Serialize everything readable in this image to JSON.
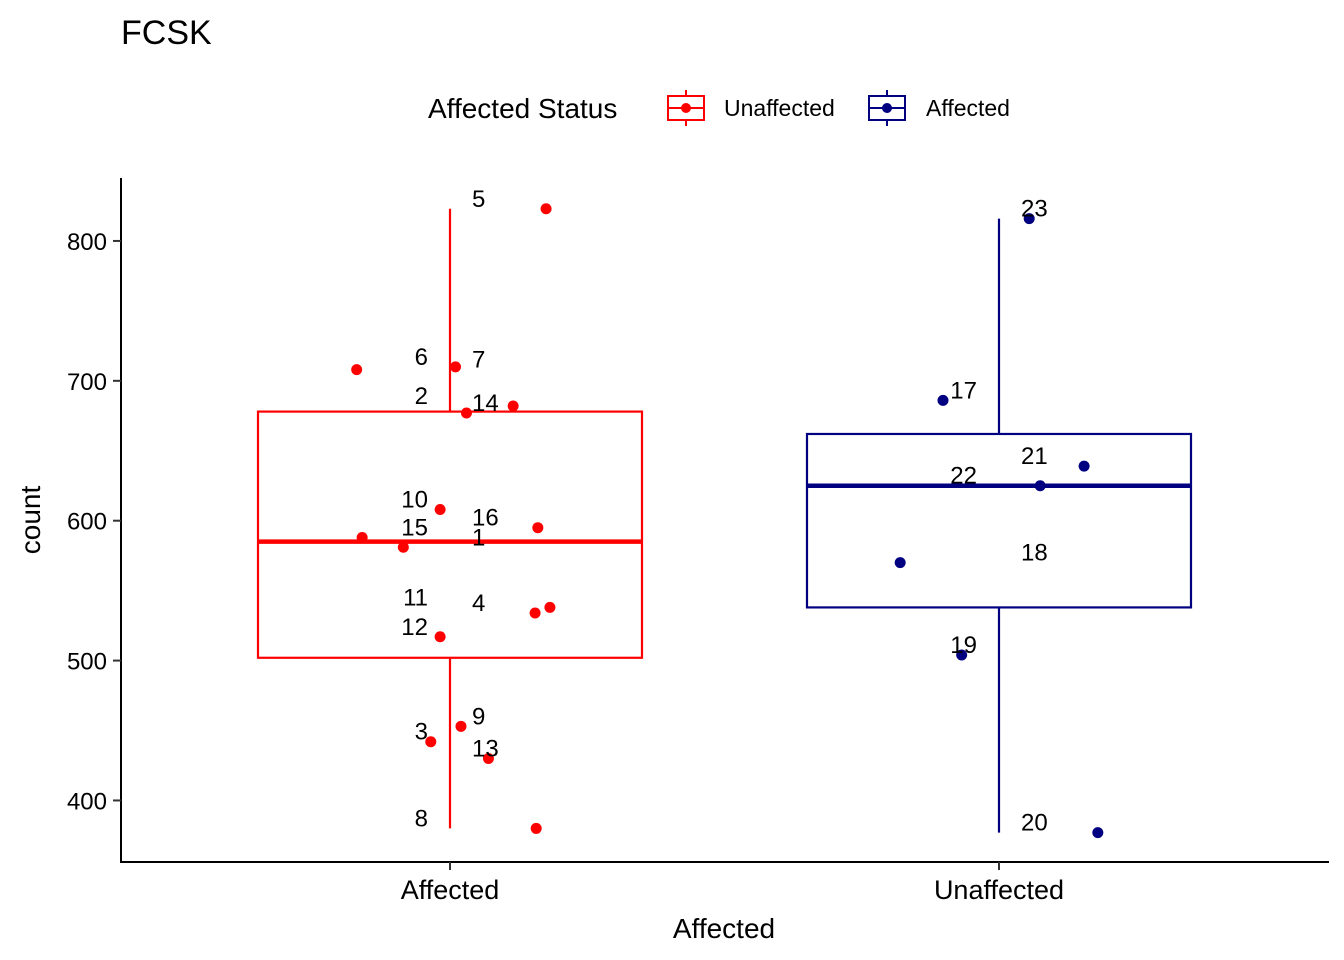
{
  "chart_data": {
    "type": "boxplot",
    "title": "FCSK",
    "xlabel": "Affected",
    "ylabel": "count",
    "ylim": [
      356,
      845
    ],
    "yticks": [
      400,
      500,
      600,
      700,
      800
    ],
    "categories": [
      "Affected",
      "Unaffected"
    ],
    "legend": {
      "title": "Affected Status",
      "position": "top",
      "entries": [
        {
          "label": "Unaffected",
          "color": "#FF0000"
        },
        {
          "label": "Affected",
          "color": "#000080"
        }
      ]
    },
    "series": [
      {
        "name": "Unaffected",
        "category": "Affected",
        "color": "#FF0000",
        "box": {
          "whisker_low": 380,
          "q1": 502,
          "median": 585,
          "q3": 678,
          "whisker_high": 823
        },
        "points": [
          {
            "label": "5",
            "value": 823,
            "jitter": 0.175
          },
          {
            "label": "6",
            "value": 710,
            "jitter": 0.01
          },
          {
            "label": "7",
            "value": 708,
            "jitter": -0.17
          },
          {
            "label": "2",
            "value": 682,
            "jitter": 0.115
          },
          {
            "label": "14",
            "value": 677,
            "jitter": 0.03
          },
          {
            "label": "10",
            "value": 608,
            "jitter": -0.018
          },
          {
            "label": "16",
            "value": 595,
            "jitter": 0.16
          },
          {
            "label": "15",
            "value": 588,
            "jitter": -0.16
          },
          {
            "label": "1",
            "value": 581,
            "jitter": -0.085
          },
          {
            "label": "11",
            "value": 538,
            "jitter": 0.182
          },
          {
            "label": "4",
            "value": 534,
            "jitter": 0.155
          },
          {
            "label": "12",
            "value": 517,
            "jitter": -0.018
          },
          {
            "label": "9",
            "value": 453,
            "jitter": 0.02
          },
          {
            "label": "3",
            "value": 442,
            "jitter": -0.035
          },
          {
            "label": "13",
            "value": 430,
            "jitter": 0.07
          },
          {
            "label": "8",
            "value": 380,
            "jitter": 0.157
          }
        ]
      },
      {
        "name": "Affected",
        "category": "Unaffected",
        "color": "#000080",
        "box": {
          "whisker_low": 377,
          "q1": 538,
          "median": 625,
          "q3": 662,
          "whisker_high": 816
        },
        "points": [
          {
            "label": "23",
            "value": 816,
            "jitter": 0.055
          },
          {
            "label": "17",
            "value": 686,
            "jitter": -0.102
          },
          {
            "label": "21",
            "value": 639,
            "jitter": 0.155
          },
          {
            "label": "22",
            "value": 625,
            "jitter": 0.075
          },
          {
            "label": "18",
            "value": 570,
            "jitter": -0.18
          },
          {
            "label": "19",
            "value": 504,
            "jitter": -0.068
          },
          {
            "label": "20",
            "value": 377,
            "jitter": 0.18
          }
        ]
      }
    ]
  }
}
